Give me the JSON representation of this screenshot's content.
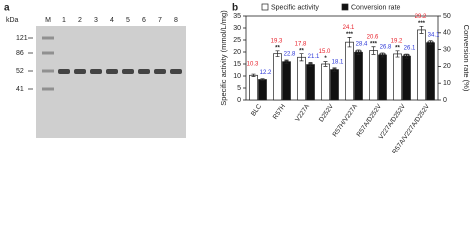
{
  "panel_a": {
    "label": "a",
    "unit": "kDa",
    "lanes": [
      "M",
      "1",
      "2",
      "3",
      "4",
      "5",
      "6",
      "7",
      "8"
    ],
    "markers": [
      "121",
      "86",
      "52",
      "41"
    ]
  },
  "chart_data": {
    "type": "bar",
    "panel_label": "b",
    "ylabel": "Specific activity (mmol/L/mg)",
    "y2label": "Conversion rate (%)",
    "categories": [
      "BLC",
      "R57H",
      "V227A",
      "D252V",
      "R57H/V227A",
      "R57A/D252V",
      "V227A/D252V",
      "R57A/V227A/D252V"
    ],
    "series": [
      {
        "name": "Specific activity",
        "color": "#ffffff",
        "label_color": "#e8202a",
        "values": [
          10.3,
          19.3,
          17.8,
          15.0,
          24.1,
          20.6,
          19.2,
          29.2
        ],
        "value_labels": [
          "10.3",
          "19.3",
          "17.8",
          "15.0",
          "24.1",
          "20.6",
          "19.2",
          "29.2"
        ],
        "errors": [
          0.5,
          1.2,
          1.5,
          1.0,
          2.0,
          1.6,
          1.3,
          1.5
        ],
        "significance": [
          null,
          "**",
          "**",
          "*",
          "***",
          "***",
          "**",
          "***"
        ]
      },
      {
        "name": "Conversion rate",
        "color": "#111111",
        "label_color": "#2a35d8",
        "axis": "y2",
        "values": [
          12.2,
          22.8,
          21.1,
          18.1,
          28.4,
          26.8,
          26.1,
          34.1
        ],
        "value_labels": [
          "12.2",
          "22.8",
          "21.1",
          "18.1",
          "28.4",
          "26.8",
          "26.1",
          "34.1"
        ],
        "errors": [
          0.5,
          1.0,
          1.2,
          1.0,
          1.4,
          1.2,
          1.2,
          1.2
        ],
        "significance": [
          null,
          "**",
          "**",
          "**",
          "***",
          "***",
          "***",
          "***"
        ]
      }
    ],
    "ylim": [
      0,
      35
    ],
    "yticks": [
      0,
      5,
      10,
      15,
      20,
      25,
      30,
      35
    ],
    "y2lim": [
      0,
      50
    ],
    "y2ticks": [
      0,
      10,
      20,
      30,
      40,
      50
    ]
  }
}
